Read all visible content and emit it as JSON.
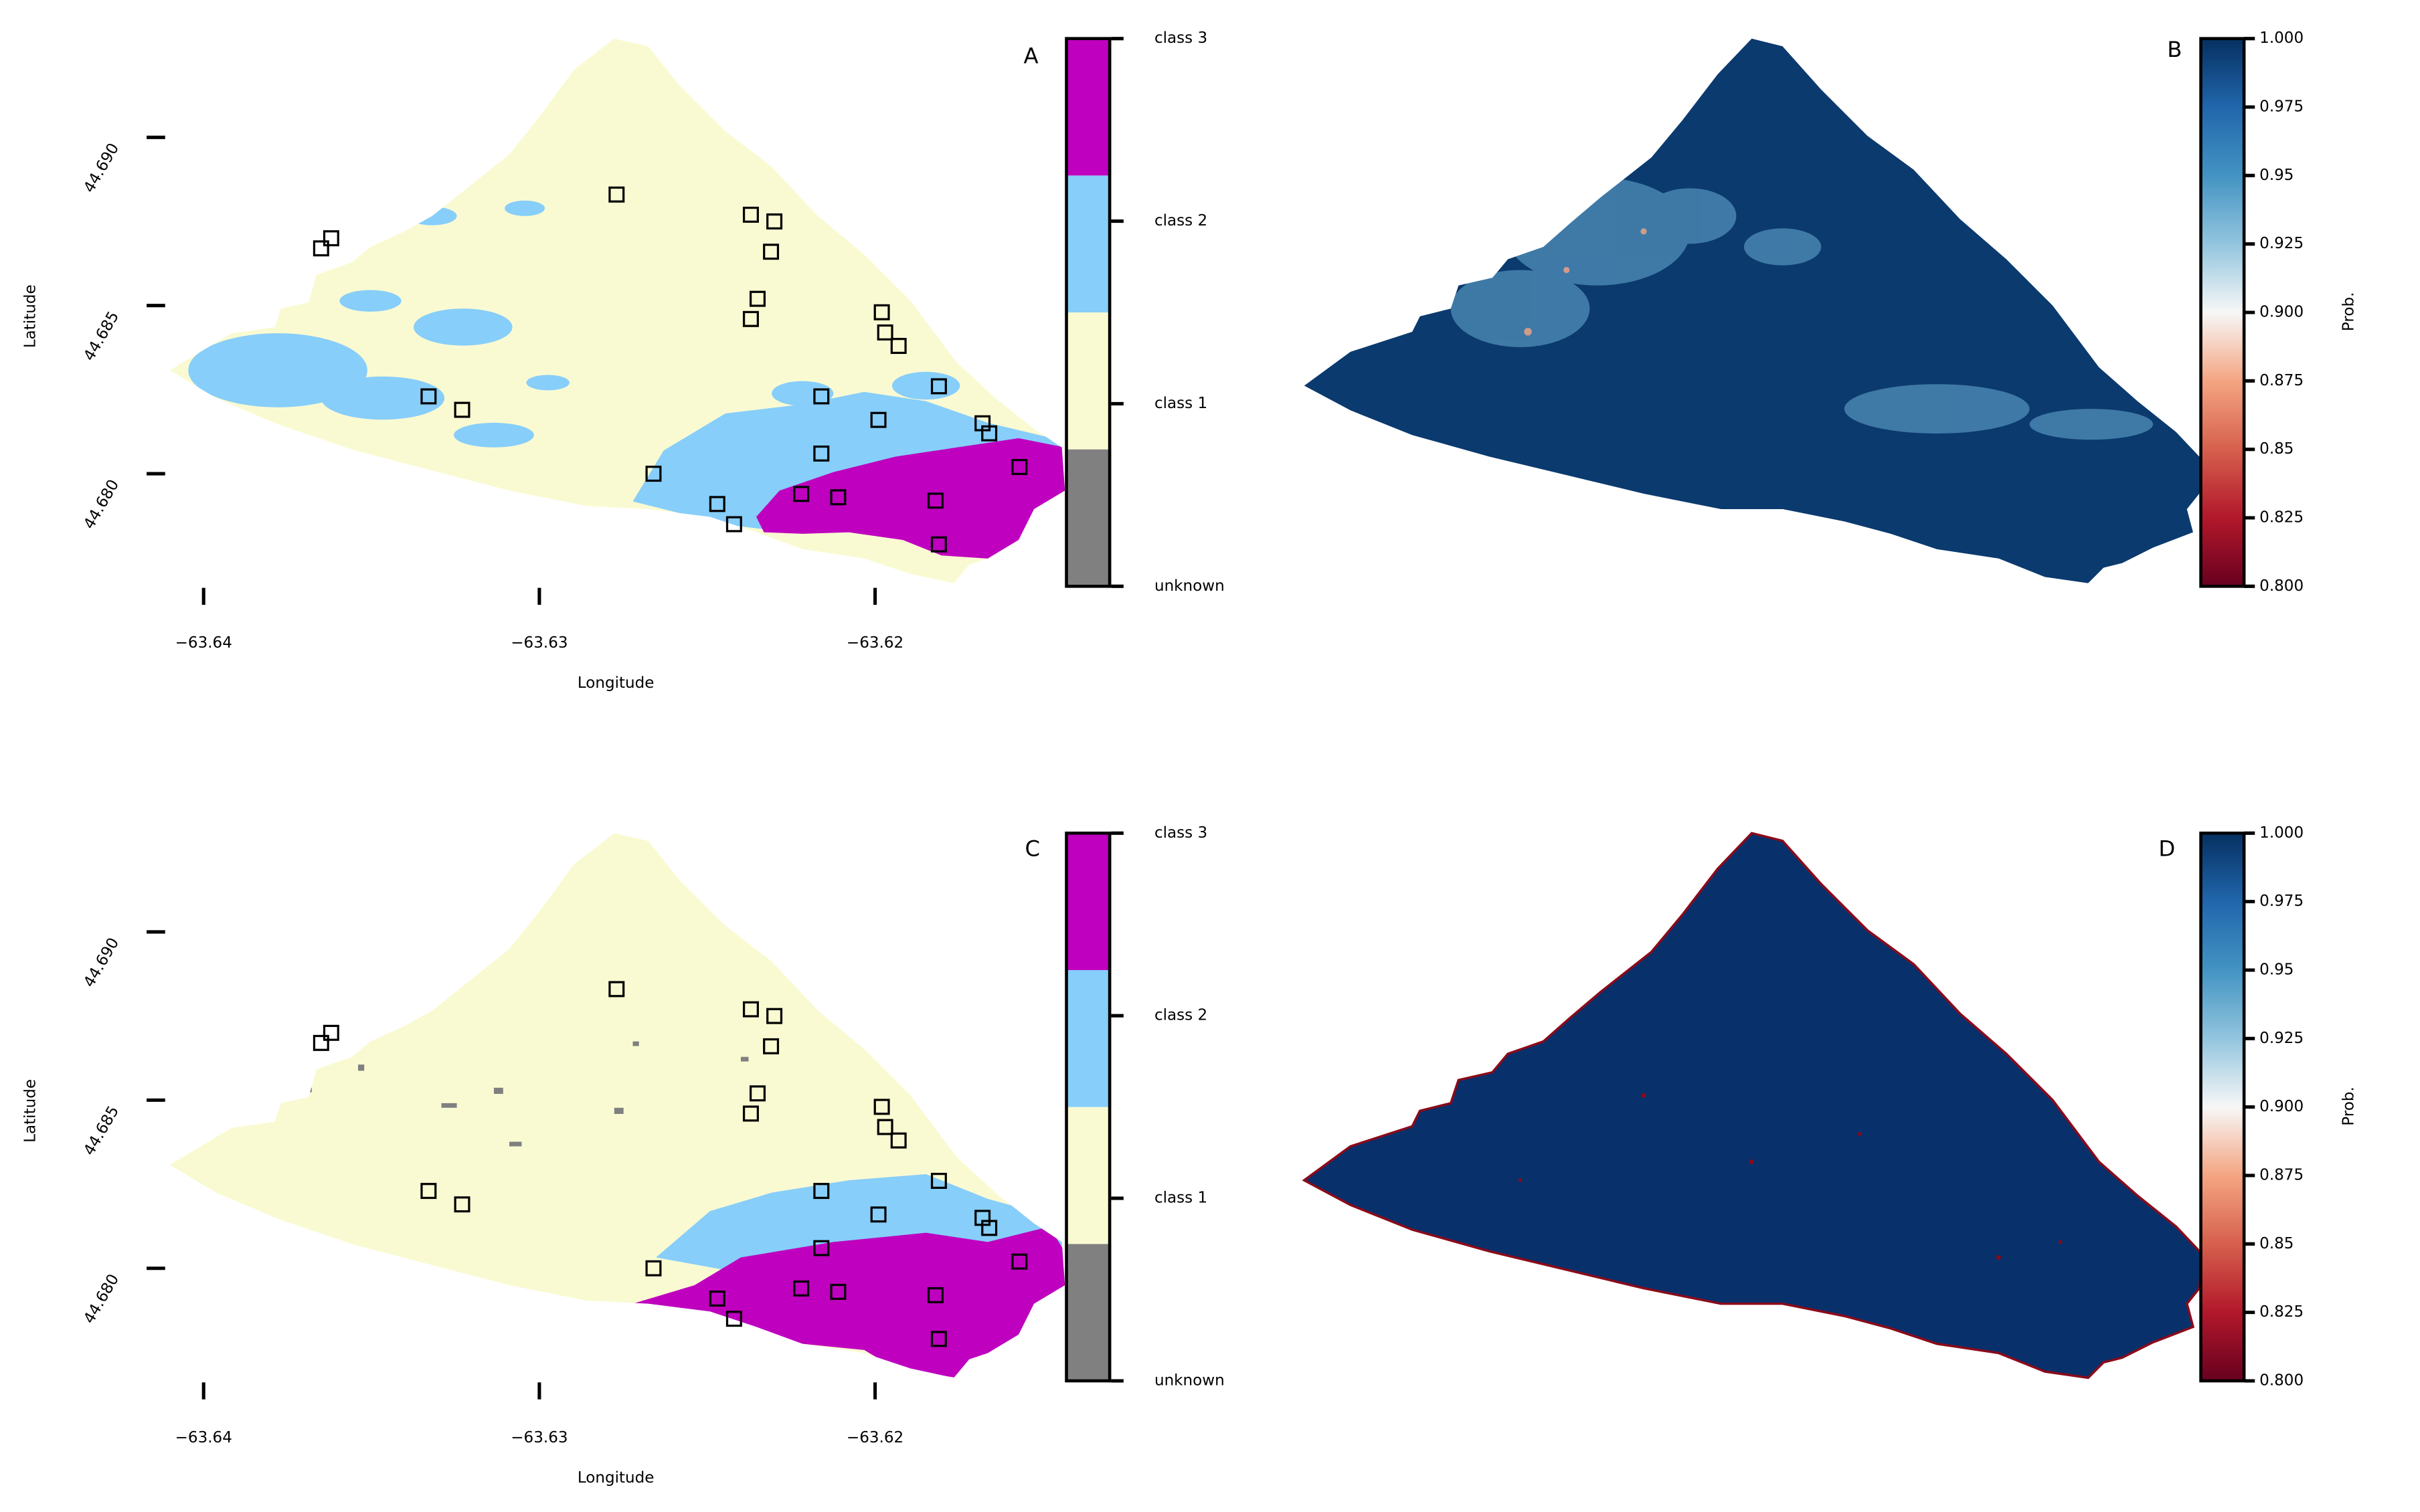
{
  "chart_data": [
    {
      "type": "map",
      "panel": "A",
      "xlabel": "Longitude",
      "ylabel": "Latitude",
      "xlim": [
        -63.6411,
        -63.6143
      ],
      "ylim": [
        44.6767,
        44.6929
      ],
      "xticks": [
        {
          "value": -63.64,
          "label": "−63.64"
        },
        {
          "value": -63.63,
          "label": "−63.63"
        },
        {
          "value": -63.62,
          "label": "−63.62"
        }
      ],
      "yticks": [
        {
          "value": 44.68,
          "label": "44.680"
        },
        44.685,
        {
          "value": 44.69,
          "label": "44.690"
        }
      ],
      "points": {
        "x": [
          -63.6365,
          -63.6362,
          -63.6277,
          -63.6237,
          -63.623,
          -63.6231,
          -63.6235,
          -63.6237,
          -63.6198,
          -63.6197,
          -63.6193,
          -63.6333,
          -63.6323,
          -63.6216,
          -63.6181,
          -63.6199,
          -63.6168,
          -63.6166,
          -63.6216,
          -63.6157,
          -63.6266,
          -63.6247,
          -63.6242,
          -63.6222,
          -63.6211,
          -63.6182,
          -63.6181
        ],
        "y": [
          44.6867,
          44.687,
          44.6883,
          44.6877,
          44.6875,
          44.6866,
          44.6852,
          44.6846,
          44.6848,
          44.6842,
          44.6838,
          44.6823,
          44.6819,
          44.6823,
          44.6826,
          44.6816,
          44.6815,
          44.6812,
          44.6806,
          44.6802,
          44.68,
          44.6791,
          44.6785,
          44.6794,
          44.6793,
          44.6792,
          44.6779
        ]
      },
      "colorbar": {
        "type": "categorical",
        "categories": [
          "unknown",
          "class 1",
          "class 2",
          "class 3"
        ],
        "colors": [
          "#808080",
          "#fafad2",
          "#87cefa",
          "#bf00bf"
        ]
      }
    },
    {
      "type": "map",
      "panel": "B",
      "colorbar": {
        "type": "continuous",
        "label": "Prob.",
        "lim": [
          0.8,
          1.0
        ],
        "ticks": [
          {
            "value": 0.8,
            "label": "0.800"
          },
          0.825,
          0.85,
          0.875,
          {
            "value": 0.9,
            "label": "0.900"
          },
          0.925,
          0.95,
          0.975,
          {
            "value": 1.0,
            "label": "1.000"
          }
        ]
      }
    },
    {
      "type": "map",
      "panel": "C",
      "xlabel": "Longitude",
      "ylabel": "Latitude",
      "xlim": [
        -63.6411,
        -63.6143
      ],
      "ylim": [
        44.6767,
        44.6929
      ],
      "xticks": [
        {
          "value": -63.64,
          "label": "−63.64"
        },
        {
          "value": -63.63,
          "label": "−63.63"
        },
        {
          "value": -63.62,
          "label": "−63.62"
        }
      ],
      "yticks": [
        {
          "value": 44.68,
          "label": "44.680"
        },
        44.685,
        {
          "value": 44.69,
          "label": "44.690"
        }
      ],
      "points": {
        "x": [
          -63.6365,
          -63.6362,
          -63.6277,
          -63.6237,
          -63.623,
          -63.6231,
          -63.6235,
          -63.6237,
          -63.6198,
          -63.6197,
          -63.6193,
          -63.6333,
          -63.6323,
          -63.6216,
          -63.6181,
          -63.6199,
          -63.6168,
          -63.6166,
          -63.6216,
          -63.6157,
          -63.6266,
          -63.6247,
          -63.6242,
          -63.6222,
          -63.6211,
          -63.6182,
          -63.6181
        ],
        "y": [
          44.6867,
          44.687,
          44.6883,
          44.6877,
          44.6875,
          44.6866,
          44.6852,
          44.6846,
          44.6848,
          44.6842,
          44.6838,
          44.6823,
          44.6819,
          44.6823,
          44.6826,
          44.6816,
          44.6815,
          44.6812,
          44.6806,
          44.6802,
          44.68,
          44.6791,
          44.6785,
          44.6794,
          44.6793,
          44.6792,
          44.6779
        ]
      },
      "colorbar": {
        "type": "categorical",
        "categories": [
          "unknown",
          "class 1",
          "class 2",
          "class 3"
        ],
        "colors": [
          "#808080",
          "#fafad2",
          "#87cefa",
          "#bf00bf"
        ]
      }
    },
    {
      "type": "map",
      "panel": "D",
      "colorbar": {
        "type": "continuous",
        "label": "Prob.",
        "lim": [
          0.8,
          1.0
        ],
        "ticks": [
          {
            "value": 0.8,
            "label": "0.800"
          },
          0.825,
          0.85,
          0.875,
          {
            "value": 0.9,
            "label": "0.900"
          },
          0.925,
          0.95,
          0.975,
          {
            "value": 1.0,
            "label": "1.000"
          }
        ]
      }
    }
  ]
}
